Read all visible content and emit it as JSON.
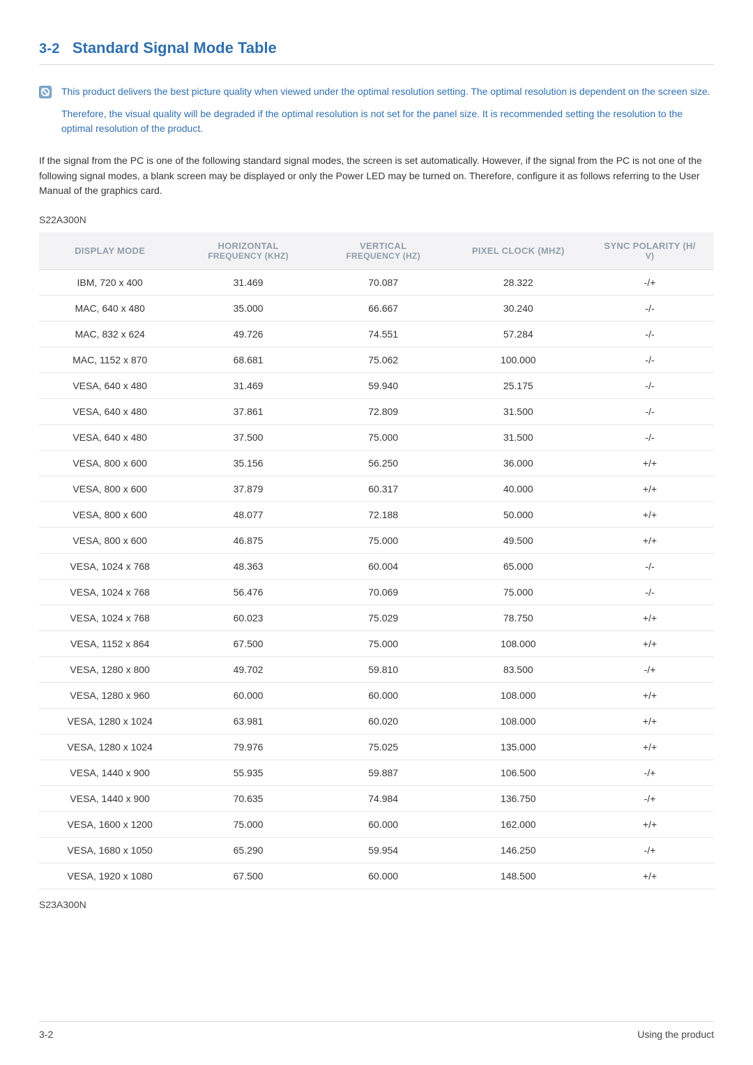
{
  "colors": {
    "accent": "#2f6fae",
    "header_bg": "#f3f3f5",
    "header_text": "#8f9da9",
    "row_border": "#e6e6ea",
    "rule": "#d8d8d8",
    "body_text": "#333333"
  },
  "header": {
    "section_number": "3-2",
    "section_title": "Standard Signal Mode Table"
  },
  "note": {
    "icon_name": "info-icon",
    "p1": "This product delivers the best picture quality when viewed under the optimal resolution setting. The optimal resolution is dependent on the screen size.",
    "p2": "Therefore, the visual quality will be degraded if the optimal resolution is not set for the panel size. It is recommended setting the resolution to the optimal resolution of the product."
  },
  "body_paragraph": "If the signal from the PC is one of the following standard signal modes, the screen is set automatically. However, if the signal from the PC is not one of the following signal modes, a blank screen may be displayed or only the Power LED may be turned on. Therefore, configure it as follows referring to the User Manual of the graphics card.",
  "model_above": "S22A300N",
  "model_below": "S23A300N",
  "table": {
    "type": "table",
    "columns": [
      {
        "label": "DISPLAY MODE",
        "sub": ""
      },
      {
        "label": "HORIZONTAL",
        "sub": "FREQUENCY (KHZ)"
      },
      {
        "label": "VERTICAL",
        "sub": "FREQUENCY  (HZ)"
      },
      {
        "label": "PIXEL CLOCK (MHZ)",
        "sub": ""
      },
      {
        "label": "SYNC POLARITY (H/",
        "sub": "V)"
      }
    ],
    "rows": [
      [
        "IBM, 720 x 400",
        "31.469",
        "70.087",
        "28.322",
        "-/+"
      ],
      [
        "MAC, 640 x 480",
        "35.000",
        "66.667",
        "30.240",
        "-/-"
      ],
      [
        "MAC,  832 x 624",
        "49.726",
        "74.551",
        "57.284",
        "-/-"
      ],
      [
        "MAC, 1152 x 870",
        "68.681",
        "75.062",
        "100.000",
        "-/-"
      ],
      [
        "VESA, 640 x 480",
        "31.469",
        "59.940",
        "25.175",
        "-/-"
      ],
      [
        "VESA, 640 x 480",
        "37.861",
        "72.809",
        "31.500",
        "-/-"
      ],
      [
        "VESA, 640 x 480",
        "37.500",
        "75.000",
        "31.500",
        "-/-"
      ],
      [
        "VESA, 800 x 600",
        "35.156",
        "56.250",
        "36.000",
        "+/+"
      ],
      [
        "VESA, 800 x 600",
        "37.879",
        "60.317",
        "40.000",
        "+/+"
      ],
      [
        "VESA, 800 x 600",
        "48.077",
        "72.188",
        "50.000",
        "+/+"
      ],
      [
        "VESA, 800 x 600",
        "46.875",
        "75.000",
        "49.500",
        "+/+"
      ],
      [
        "VESA, 1024 x 768",
        "48.363",
        "60.004",
        "65.000",
        "-/-"
      ],
      [
        "VESA, 1024 x 768",
        "56.476",
        "70.069",
        "75.000",
        "-/-"
      ],
      [
        "VESA, 1024 x 768",
        "60.023",
        "75.029",
        "78.750",
        "+/+"
      ],
      [
        "VESA, 1152 x 864",
        "67.500",
        "75.000",
        "108.000",
        "+/+"
      ],
      [
        "VESA, 1280 x 800",
        "49.702",
        "59.810",
        "83.500",
        "-/+"
      ],
      [
        "VESA, 1280 x 960",
        "60.000",
        "60.000",
        "108.000",
        "+/+"
      ],
      [
        "VESA, 1280 x 1024",
        "63.981",
        "60.020",
        "108.000",
        "+/+"
      ],
      [
        "VESA, 1280 x 1024",
        "79.976",
        "75.025",
        "135.000",
        "+/+"
      ],
      [
        "VESA, 1440 x 900",
        "55.935",
        "59.887",
        "106.500",
        "-/+"
      ],
      [
        "VESA, 1440 x 900",
        "70.635",
        "74.984",
        "136.750",
        "-/+"
      ],
      [
        "VESA, 1600 x 1200",
        "75.000",
        "60.000",
        "162.000",
        "+/+"
      ],
      [
        "VESA, 1680 x 1050",
        "65.290",
        "59.954",
        "146.250",
        "-/+"
      ],
      [
        "VESA, 1920 x 1080",
        "67.500",
        "60.000",
        "148.500",
        "+/+"
      ]
    ]
  },
  "footer": {
    "left": "3-2",
    "right": "Using the product"
  }
}
